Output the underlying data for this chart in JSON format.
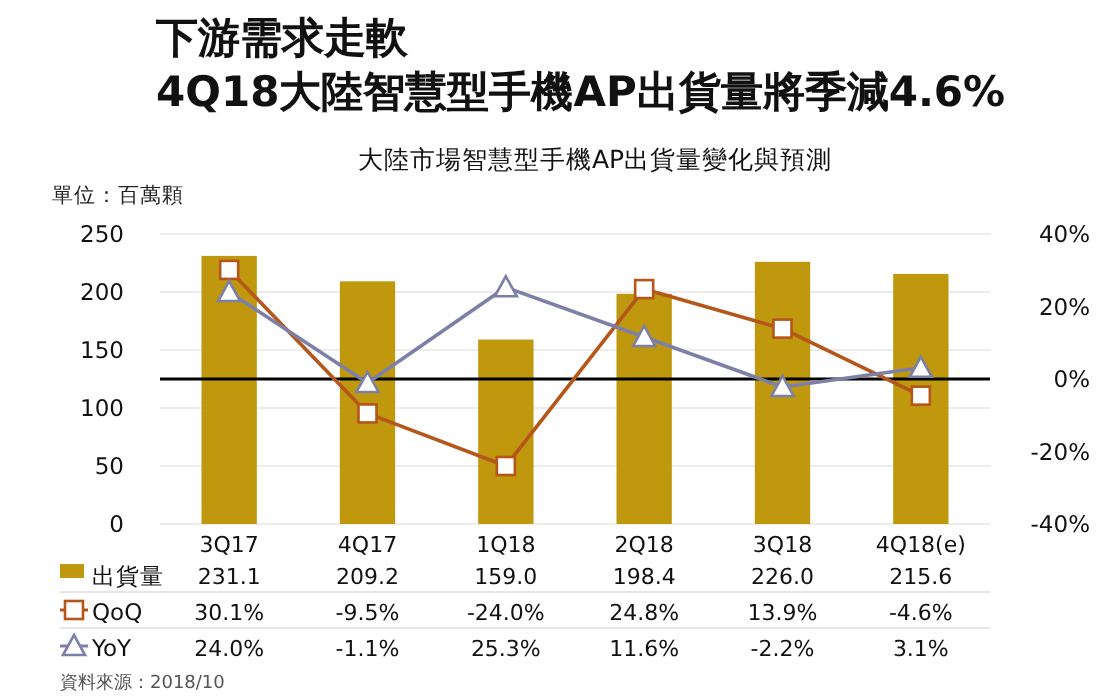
{
  "chart_data": {
    "type": "bar",
    "title": "下游需求走軟",
    "subtitle": "4Q18大陸智慧型手機AP出貨量將季減4.6%",
    "ylabel": "單位：百萬顆",
    "annotations": [
      "大陸市場智慧型手機AP出貨量變化與預測",
      "資料來源：2018/10"
    ],
    "categories": [
      "3Q17",
      "4Q17",
      "1Q18",
      "2Q18",
      "3Q18",
      "4Q18(e)"
    ],
    "series": [
      {
        "name": "出貨量",
        "color": "#bf980e",
        "values": [
          231.1,
          209.2,
          159.0,
          198.4,
          226.0,
          215.6
        ],
        "value_labels": [
          "231.1",
          "209.2",
          "159.0",
          "198.4",
          "226.0",
          "215.6"
        ]
      },
      {
        "name": "QoQ",
        "type": "line",
        "axis": "y2",
        "marker": "square",
        "color": "#b5561a",
        "values": [
          30.1,
          -9.5,
          -24.0,
          24.8,
          13.9,
          -4.6
        ],
        "value_labels": [
          "30.1%",
          "-9.5%",
          "-24.0%",
          "24.8%",
          "13.9%",
          "-4.6%"
        ]
      },
      {
        "name": "YoY",
        "type": "line",
        "axis": "y2",
        "marker": "triangle",
        "color": "#7d80a6",
        "values": [
          24.0,
          -1.1,
          25.3,
          11.6,
          -2.2,
          3.1
        ],
        "value_labels": [
          "24.0%",
          "-1.1%",
          "25.3%",
          "11.6%",
          "-2.2%",
          "3.1%"
        ]
      }
    ],
    "ylim": [
      0,
      250
    ],
    "yticks": [
      0,
      50,
      100,
      150,
      200,
      250
    ],
    "y2lim": [
      -40,
      40
    ],
    "y2ticks": [
      {
        "value": -40,
        "label": "-40%"
      },
      {
        "value": -20,
        "label": "-20%"
      },
      {
        "value": 0,
        "label": "0%"
      },
      {
        "value": 20,
        "label": "20%"
      },
      {
        "value": 40,
        "label": "40%"
      }
    ],
    "ref_lines": [
      {
        "axis": "y2",
        "value": 0,
        "color": "#000000"
      }
    ],
    "grid": "y",
    "legend": "bottom"
  }
}
